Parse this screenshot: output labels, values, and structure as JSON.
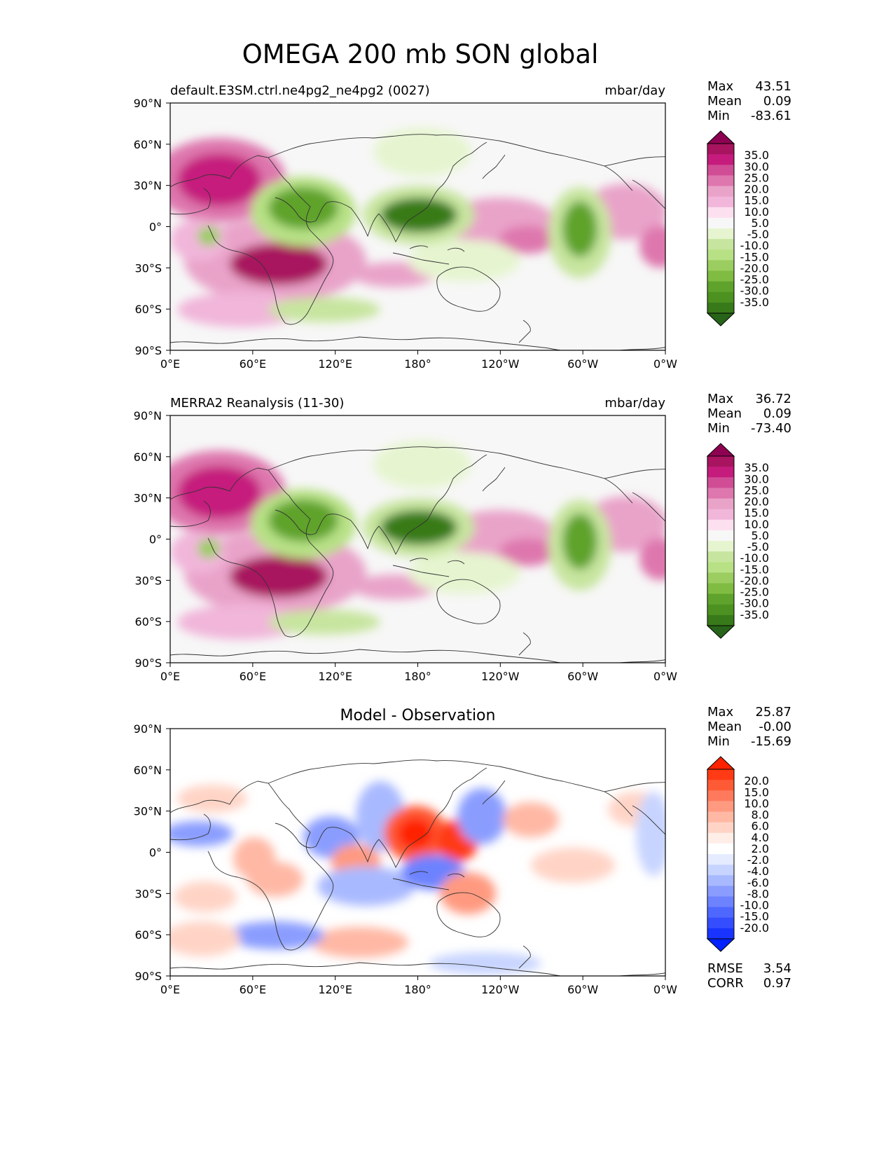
{
  "figure": {
    "title": "OMEGA 200 mb SON global",
    "x_ticks": [
      "0°E",
      "60°E",
      "120°E",
      "180°",
      "120°W",
      "60°W",
      "0°W"
    ],
    "y_ticks": [
      "90°N",
      "60°N",
      "30°N",
      "0°",
      "30°S",
      "60°S",
      "90°S"
    ]
  },
  "panels": [
    {
      "left_title": "default.E3SM.ctrl.ne4pg2_ne4pg2 (0027)",
      "center_title": "",
      "right_title": "mbar/day",
      "stats": [
        {
          "label": "Max",
          "value": "43.51"
        },
        {
          "label": "Mean",
          "value": "0.09"
        },
        {
          "label": "Min",
          "value": "-83.61"
        }
      ],
      "levels": [
        "35.0",
        "30.0",
        "25.0",
        "20.0",
        "15.0",
        "10.0",
        "5.0",
        "-5.0",
        "-10.0",
        "-15.0",
        "-20.0",
        "-25.0",
        "-30.0",
        "-35.0"
      ],
      "colors": [
        "#8e0152",
        "#a8145f",
        "#c51b7d",
        "#d04d96",
        "#de77ae",
        "#e9a3c9",
        "#f1b6da",
        "#fde0ef",
        "#f7f7f7",
        "#e6f5d0",
        "#c7e59f",
        "#b8e186",
        "#9bcd60",
        "#7fbc41",
        "#5fa32c",
        "#4d9221",
        "#387a19",
        "#276419"
      ],
      "palette": "PiYG"
    },
    {
      "left_title": "MERRA2 Reanalysis (11-30)",
      "center_title": "",
      "right_title": "mbar/day",
      "stats": [
        {
          "label": "Max",
          "value": "36.72"
        },
        {
          "label": "Mean",
          "value": "0.09"
        },
        {
          "label": "Min",
          "value": "-73.40"
        }
      ],
      "levels": [
        "35.0",
        "30.0",
        "25.0",
        "20.0",
        "15.0",
        "10.0",
        "5.0",
        "-5.0",
        "-10.0",
        "-15.0",
        "-20.0",
        "-25.0",
        "-30.0",
        "-35.0"
      ],
      "colors": [
        "#8e0152",
        "#a8145f",
        "#c51b7d",
        "#d04d96",
        "#de77ae",
        "#e9a3c9",
        "#f1b6da",
        "#fde0ef",
        "#f7f7f7",
        "#e6f5d0",
        "#c7e59f",
        "#b8e186",
        "#9bcd60",
        "#7fbc41",
        "#5fa32c",
        "#4d9221",
        "#387a19",
        "#276419"
      ],
      "palette": "PiYG"
    },
    {
      "left_title": "",
      "center_title": "Model - Observation",
      "right_title": "",
      "stats": [
        {
          "label": "Max",
          "value": "25.87"
        },
        {
          "label": "Mean",
          "value": "-0.00"
        },
        {
          "label": "Min",
          "value": "-15.69"
        }
      ],
      "levels": [
        "20.0",
        "15.0",
        "10.0",
        "8.0",
        "6.0",
        "4.0",
        "2.0",
        "-2.0",
        "-4.0",
        "-6.0",
        "-8.0",
        "-10.0",
        "-15.0",
        "-20.0"
      ],
      "colors": [
        "#ff2200",
        "#ff3a14",
        "#ff5a36",
        "#ff7a5c",
        "#ff9a80",
        "#ffb8a4",
        "#ffd4c6",
        "#ffeee8",
        "#ffffff",
        "#e6ecff",
        "#c7d4ff",
        "#a9b9ff",
        "#8a9dff",
        "#6d82ff",
        "#4e67ff",
        "#344dff",
        "#1a34ff",
        "#0020ff"
      ],
      "palette": "RdBu_r",
      "bottom_stats": [
        {
          "label": "RMSE",
          "value": "3.54"
        },
        {
          "label": "CORR",
          "value": "0.97"
        }
      ]
    }
  ]
}
